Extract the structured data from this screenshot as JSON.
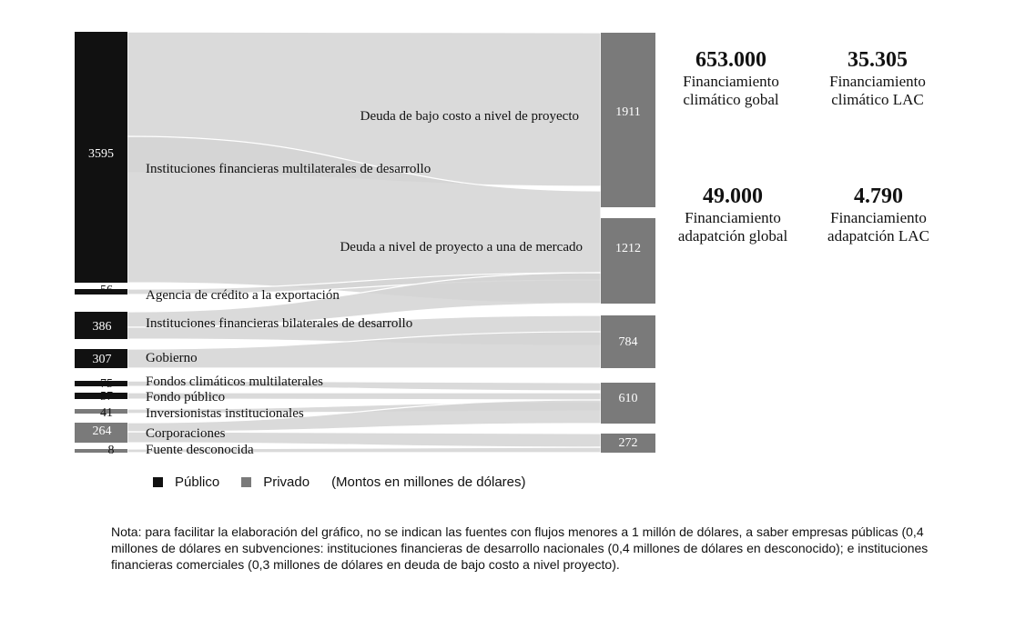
{
  "chart_data": {
    "type": "sankey",
    "units_note": "(Montos en millones de dólares)",
    "legend": [
      {
        "label": "Público",
        "color": "#111111"
      },
      {
        "label": "Privado",
        "color": "#7a7a7a"
      }
    ],
    "sources": [
      {
        "name": "Instituciones financieras multilaterales de desarrollo",
        "value": 3595,
        "category": "Público"
      },
      {
        "name": "Agencia de crédito a la exportación",
        "value": 56,
        "category": "Público"
      },
      {
        "name": "Instituciones financieras bilaterales de desarrollo",
        "value": 386,
        "category": "Público"
      },
      {
        "name": "Gobierno",
        "value": 307,
        "category": "Público"
      },
      {
        "name": "Fondos climáticos multilaterales",
        "value": 75,
        "category": "Público"
      },
      {
        "name": "Fondo público",
        "value": 57,
        "category": "Público"
      },
      {
        "name": "Inversionistas institucionales",
        "value": 41,
        "category": "Privado"
      },
      {
        "name": "Corporaciones",
        "value": 264,
        "category": "Privado"
      },
      {
        "name": "Fuente desconocida",
        "value": 8,
        "category": "Privado"
      }
    ],
    "targets": [
      {
        "name": "Deuda de bajo costo a nivel de proyecto",
        "value": 1911
      },
      {
        "name": "Deuda a nivel de proyecto a una de mercado",
        "value": 1212
      },
      {
        "name": "",
        "value": 784
      },
      {
        "name": "",
        "value": 610
      },
      {
        "name": "",
        "value": 272
      }
    ]
  },
  "stats": [
    {
      "value": "653.000",
      "label_line1": "Financiamiento",
      "label_line2": "climático gobal"
    },
    {
      "value": "35.305",
      "label_line1": "Financiamiento",
      "label_line2": "climático LAC"
    },
    {
      "value": "49.000",
      "label_line1": "Financiamiento",
      "label_line2": "adapatción global"
    },
    {
      "value": "4.790",
      "label_line1": "Financiamiento",
      "label_line2": "adapatción LAC"
    }
  ],
  "note": "Nota: para facilitar la elaboración del gráfico, no se indican las fuentes con flujos menores a 1 millón de dólares, a saber empresas públicas (0,4 millones de dólares en subvenciones: instituciones financieras de desarrollo nacionales (0,4 millones de dólares en desconocido); e instituciones financieras comerciales (0,3 millones de dólares en deuda de bajo costo a nivel proyecto).",
  "colors": {
    "public": "#111111",
    "private": "#7a7a7a",
    "flow": "#d4d4d4"
  }
}
